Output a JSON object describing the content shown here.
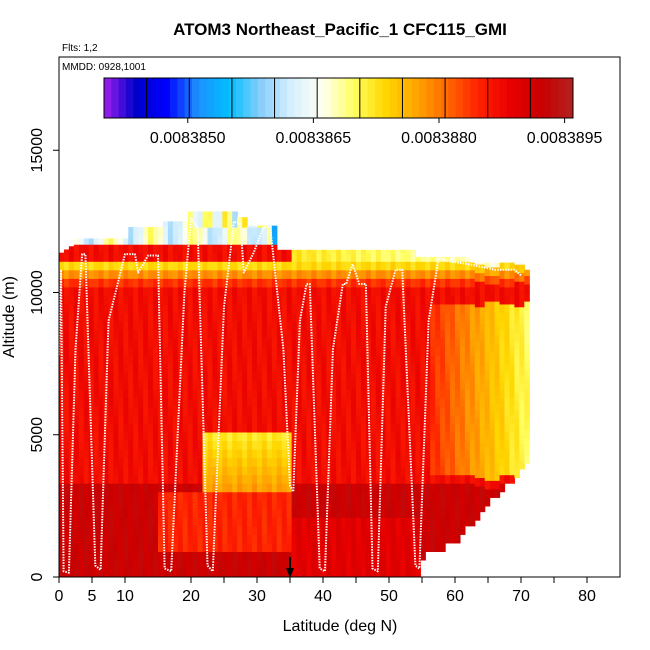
{
  "chart_data": {
    "type": "heatmap",
    "title": "ATOM3 Northeast_Pacific_1 CFC115_GMI",
    "flights_note": "Flts: 1,2",
    "dates_note": "MMDD: 0928,1001",
    "xlabel": "Latitude (deg N)",
    "ylabel": "Altitude (m)",
    "xlim": [
      0,
      85
    ],
    "ylim": [
      0,
      17500
    ],
    "x_ticks": [
      0,
      5,
      10,
      20,
      30,
      40,
      50,
      60,
      70,
      80
    ],
    "x_tick_labels": [
      "0",
      "5",
      "10",
      "20",
      "30",
      "40",
      "50",
      "60",
      "70",
      "80"
    ],
    "y_ticks": [
      0,
      5000,
      10000,
      15000
    ],
    "y_tick_labels": [
      "0",
      "5000",
      "10000",
      "15000"
    ],
    "arrow_marker": {
      "lat": 35,
      "alt": 0
    },
    "colorbar": {
      "min": 0.008384,
      "max": 0.0083896,
      "tick_values": [
        0.008385,
        0.0083865,
        0.008388,
        0.0083895
      ],
      "tick_labels": [
        "0.0083850",
        "0.0083865",
        "0.0083880",
        "0.0083895"
      ],
      "colors": [
        "#a020f0",
        "#0000c8",
        "#0000ff",
        "#1e90ff",
        "#00bfff",
        "#87cefa",
        "#d8f0ff",
        "#fffff0",
        "#ffff60",
        "#ffd700",
        "#ffa500",
        "#ff6600",
        "#ff2000",
        "#e80000",
        "#c80000",
        "#b22222"
      ]
    },
    "profile_descent_ascent_lats": [
      0.5,
      2,
      4,
      6,
      10,
      12,
      16,
      20,
      23,
      26,
      35,
      37,
      40,
      41,
      45,
      48,
      51,
      54,
      57
    ],
    "flight_track": [
      [
        0,
        7800
      ],
      [
        0.3,
        10800
      ],
      [
        0.7,
        200
      ],
      [
        1.5,
        150
      ],
      [
        2.5,
        8000
      ],
      [
        3.5,
        11350
      ],
      [
        4,
        11350
      ],
      [
        5.5,
        400
      ],
      [
        6.3,
        250
      ],
      [
        7.5,
        9000
      ],
      [
        10,
        11350
      ],
      [
        11.5,
        11350
      ],
      [
        12,
        10700
      ],
      [
        13.5,
        11300
      ],
      [
        15,
        11300
      ],
      [
        16,
        300
      ],
      [
        17,
        200
      ],
      [
        19,
        10000
      ],
      [
        20,
        12600
      ],
      [
        21,
        12300
      ],
      [
        22.5,
        400
      ],
      [
        23.3,
        200
      ],
      [
        25,
        9500
      ],
      [
        26.5,
        12500
      ],
      [
        27.5,
        12400
      ],
      [
        28,
        10700
      ],
      [
        29.5,
        11400
      ],
      [
        31,
        12300
      ],
      [
        32,
        12300
      ],
      [
        34,
        8000
      ],
      [
        35,
        3200
      ],
      [
        35.5,
        3000
      ],
      [
        36.5,
        9000
      ],
      [
        37.5,
        10300
      ],
      [
        38,
        10300
      ],
      [
        39.5,
        300
      ],
      [
        40.3,
        200
      ],
      [
        41.5,
        8000
      ],
      [
        43,
        10300
      ],
      [
        43.5,
        10300
      ],
      [
        44.5,
        11000
      ],
      [
        45.5,
        10300
      ],
      [
        46.5,
        10300
      ],
      [
        47.5,
        300
      ],
      [
        48.3,
        200
      ],
      [
        49.5,
        9500
      ],
      [
        51,
        10800
      ],
      [
        52,
        10800
      ],
      [
        54,
        400
      ],
      [
        54.6,
        300
      ],
      [
        56,
        9000
      ],
      [
        57.5,
        11200
      ],
      [
        59,
        11100
      ],
      [
        62,
        11000
      ],
      [
        66,
        10800
      ],
      [
        69,
        10800
      ],
      [
        70,
        10600
      ]
    ]
  }
}
